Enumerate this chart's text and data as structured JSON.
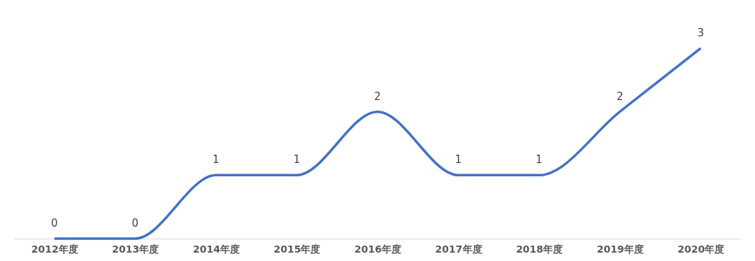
{
  "chart_data": {
    "type": "line",
    "categories": [
      "2012年度",
      "2013年度",
      "2014年度",
      "2015年度",
      "2016年度",
      "2017年度",
      "2018年度",
      "2019年度",
      "2020年度"
    ],
    "series": [
      {
        "color": "#4472c4",
        "values": [
          0,
          0,
          1,
          1,
          2,
          1,
          1,
          2,
          3
        ]
      }
    ],
    "data_labels": true,
    "tick_labels": "x",
    "grid": false,
    "marker": "none",
    "line_style": "solid"
  }
}
